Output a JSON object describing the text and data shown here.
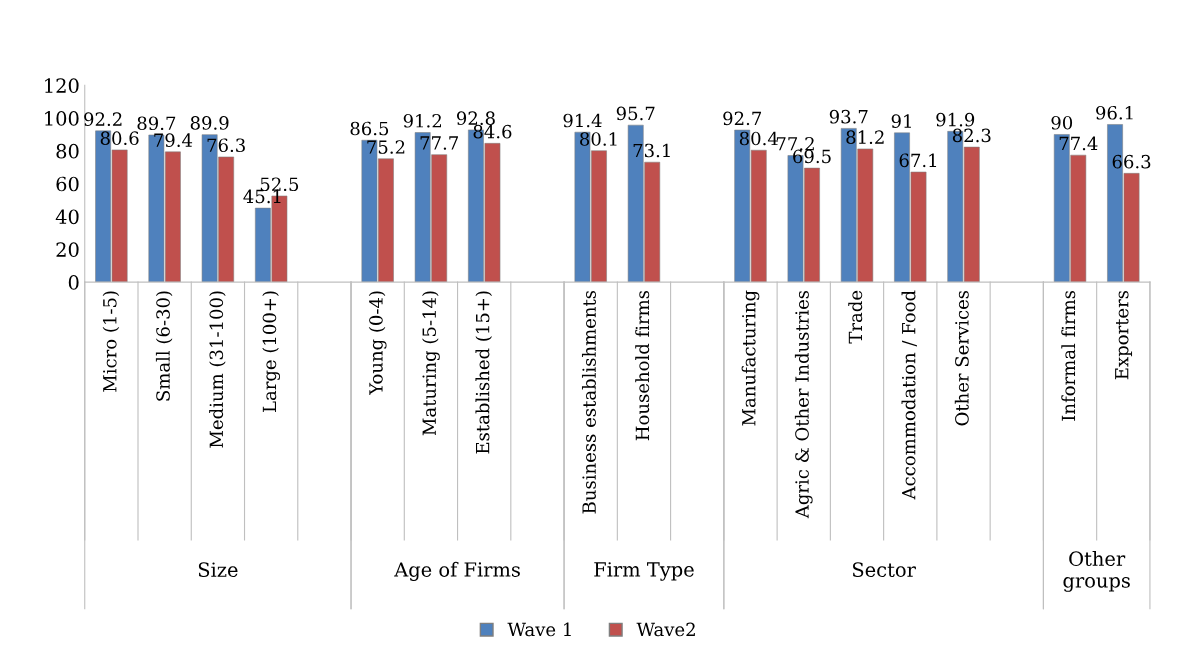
{
  "chart_data": {
    "type": "bar",
    "categories": [
      "Micro (1-5)",
      "Small (6-30)",
      "Medium (31-100)",
      "Large (100+)",
      null,
      "Young (0-4)",
      "Maturing (5-14)",
      "Established (15+)",
      null,
      "Business establishments",
      "Household firms",
      null,
      "Manufacturing",
      "Agric & Other Industries",
      "Trade",
      "Accommodation / Food",
      "Other Services",
      null,
      "Informal firms",
      "Exporters"
    ],
    "series": [
      {
        "name": "Wave 1",
        "color": "#4f81bd",
        "values": [
          92.2,
          89.7,
          89.9,
          45.1,
          null,
          86.5,
          91.2,
          92.8,
          null,
          91.4,
          95.7,
          null,
          92.7,
          77.2,
          93.7,
          91,
          91.9,
          null,
          90,
          96.1
        ]
      },
      {
        "name": "Wave2",
        "color": "#c0504d",
        "values": [
          80.6,
          79.4,
          76.3,
          52.5,
          null,
          75.2,
          77.7,
          84.6,
          null,
          80.1,
          73.1,
          null,
          80.4,
          69.5,
          81.2,
          67.1,
          82.3,
          null,
          77.4,
          66.3
        ]
      }
    ],
    "annotations": [
      "Size",
      "Age of Firms",
      "Firm Type",
      "Sector",
      "Other groups"
    ],
    "ylim": [
      0,
      120
    ],
    "yticks": [
      0,
      20,
      40,
      60,
      80,
      100,
      120
    ],
    "data_labels": true,
    "grid": false,
    "legend": "bottom"
  }
}
